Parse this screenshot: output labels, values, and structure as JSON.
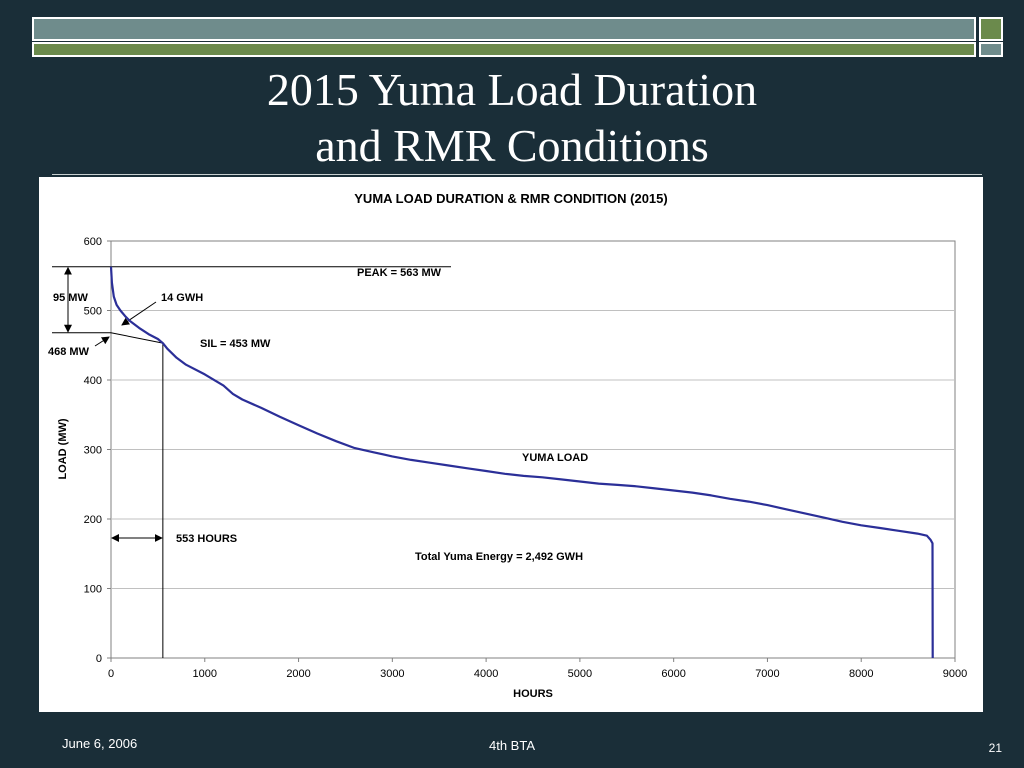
{
  "slide": {
    "title_line1": "2015 Yuma Load Duration",
    "title_line2": "and RMR Conditions"
  },
  "colors": {
    "background": "#1a2e38",
    "accent_blue_gray": "#6f8c8c",
    "accent_green": "#6b8a4c",
    "series_line": "#2b2f98"
  },
  "chart_data": {
    "type": "line",
    "title": "YUMA LOAD DURATION & RMR CONDITION (2015)",
    "xlabel": "HOURS",
    "ylabel": "LOAD (MW)",
    "xlim": [
      0,
      9000
    ],
    "ylim": [
      0,
      600
    ],
    "x_ticks": [
      0,
      1000,
      2000,
      3000,
      4000,
      5000,
      6000,
      7000,
      8000,
      9000
    ],
    "y_ticks": [
      0,
      100,
      200,
      300,
      400,
      500,
      600
    ],
    "grid": "horizontal",
    "series": [
      {
        "name": "YUMA LOAD",
        "x": [
          0,
          10,
          30,
          60,
          100,
          150,
          200,
          300,
          400,
          500,
          553,
          600,
          700,
          800,
          1000,
          1200,
          1300,
          1400,
          1600,
          1800,
          2000,
          2200,
          2400,
          2600,
          2800,
          3000,
          3200,
          3400,
          3600,
          3800,
          4000,
          4200,
          4400,
          4600,
          4800,
          5000,
          5200,
          5400,
          5600,
          5800,
          6000,
          6200,
          6400,
          6600,
          6800,
          7000,
          7200,
          7400,
          7600,
          7800,
          8000,
          8200,
          8400,
          8600,
          8700,
          8740,
          8760,
          8762
        ],
        "y": [
          563,
          540,
          520,
          508,
          500,
          492,
          485,
          475,
          466,
          459,
          453,
          445,
          432,
          422,
          408,
          392,
          380,
          372,
          360,
          347,
          335,
          323,
          312,
          302,
          296,
          290,
          285,
          281,
          277,
          273,
          269,
          265,
          262,
          260,
          257,
          254,
          251,
          249,
          247,
          244,
          241,
          238,
          234,
          229,
          225,
          220,
          214,
          208,
          202,
          196,
          191,
          187,
          183,
          179,
          176,
          170,
          165,
          0
        ]
      }
    ],
    "annotations": {
      "peak_label": "PEAK = 563 MW",
      "sil_label": "SIL = 453 MW",
      "energy_above_label": "14 GWH",
      "delta_label": "95 MW",
      "threshold_label": "468 MW",
      "hours_label": "553 HOURS",
      "series_label": "YUMA LOAD",
      "total_label": "Total Yuma Energy = 2,492 GWH",
      "peak_mw": 563,
      "sil_mw": 453,
      "threshold_mw": 468,
      "hours": 553
    }
  },
  "footer": {
    "date": "June 6, 2006",
    "center": "4th BTA",
    "page": "21"
  }
}
